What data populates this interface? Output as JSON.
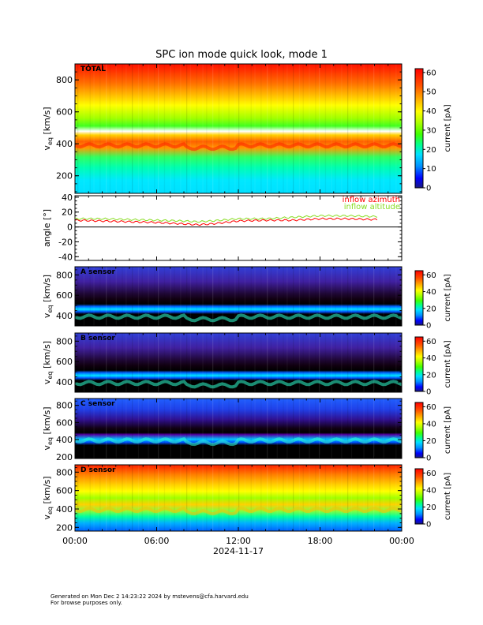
{
  "title": "SPC ion mode quick look, mode 1",
  "footer": {
    "line1": "Generated on Mon Dec  2 14:23:22 2024 by mstevens@cfa.harvard.edu",
    "line2": "For browse purposes only."
  },
  "time_axis": {
    "tick_labels": [
      "00:00",
      "06:00",
      "12:00",
      "18:00",
      "00:00"
    ],
    "date_label": "2024-11-17"
  },
  "chart_data": [
    {
      "type": "heatmap",
      "panel_label": "TOTAL",
      "ylabel": "v_eq [km/s]",
      "ylabel_main": "v",
      "ylabel_sub": "eq",
      "ylabel_unit": "[km/s]",
      "ylim": [
        90,
        900
      ],
      "yticks": [
        200,
        400,
        600,
        800
      ],
      "colorbar": {
        "label": "current [pA]",
        "range": [
          0,
          62
        ],
        "ticks": [
          0,
          10,
          20,
          30,
          40,
          50,
          60
        ]
      },
      "peak_speed_km_s": 390,
      "background_current_pA": 28
    },
    {
      "type": "line",
      "ylabel": "angle [°]",
      "ylim": [
        -45,
        42
      ],
      "yticks": [
        -40,
        -20,
        0,
        20,
        40
      ],
      "series": [
        {
          "name": "inflow azimuth",
          "color": "#ff0000",
          "x": [
            0,
            2,
            4,
            6,
            8,
            9,
            10,
            12,
            14,
            16,
            18,
            20,
            22
          ],
          "values": [
            9,
            8,
            7,
            6,
            4,
            3,
            4,
            8,
            9,
            9,
            11,
            11,
            10
          ]
        },
        {
          "name": "inflow altitude",
          "color": "#88dd22",
          "x": [
            0,
            2,
            4,
            6,
            8,
            9,
            10,
            12,
            14,
            16,
            18,
            20,
            22
          ],
          "values": [
            11,
            11,
            10,
            9,
            8,
            7,
            8,
            11,
            11,
            13,
            15,
            15,
            14
          ]
        }
      ]
    },
    {
      "type": "heatmap",
      "panel_label": "A sensor",
      "ylabel": "v_eq [km/s]",
      "ylabel_main": "v",
      "ylabel_sub": "eq",
      "ylabel_unit": "[km/s]",
      "ylim": [
        300,
        880
      ],
      "yticks": [
        400,
        600,
        800
      ],
      "colorbar": {
        "label": "current [pA]",
        "range": [
          0,
          65
        ],
        "ticks": [
          0,
          20,
          40,
          60
        ]
      },
      "peak_speed_km_s": 390
    },
    {
      "type": "heatmap",
      "panel_label": "B sensor",
      "ylabel": "v_eq [km/s]",
      "ylabel_main": "v",
      "ylabel_sub": "eq",
      "ylabel_unit": "[km/s]",
      "ylim": [
        300,
        880
      ],
      "yticks": [
        400,
        600,
        800
      ],
      "colorbar": {
        "label": "current [pA]",
        "range": [
          0,
          65
        ],
        "ticks": [
          0,
          20,
          40,
          60
        ]
      },
      "peak_speed_km_s": 390
    },
    {
      "type": "heatmap",
      "panel_label": "C sensor",
      "ylabel": "v_eq [km/s]",
      "ylabel_main": "v",
      "ylabel_sub": "eq",
      "ylabel_unit": "[km/s]",
      "ylim": [
        180,
        880
      ],
      "yticks": [
        200,
        400,
        600,
        800
      ],
      "colorbar": {
        "label": "current [pA]",
        "range": [
          0,
          65
        ],
        "ticks": [
          0,
          20,
          40,
          60
        ]
      },
      "peak_speed_km_s": 390
    },
    {
      "type": "heatmap",
      "panel_label": "D sensor",
      "ylabel": "v_eq [km/s]",
      "ylabel_main": "v",
      "ylabel_sub": "eq",
      "ylabel_unit": "[km/s]",
      "ylim": [
        160,
        880
      ],
      "yticks": [
        200,
        400,
        600,
        800
      ],
      "colorbar": {
        "label": "current [pA]",
        "range": [
          0,
          65
        ],
        "ticks": [
          0,
          20,
          40,
          60
        ]
      },
      "peak_speed_km_s": 390
    }
  ]
}
